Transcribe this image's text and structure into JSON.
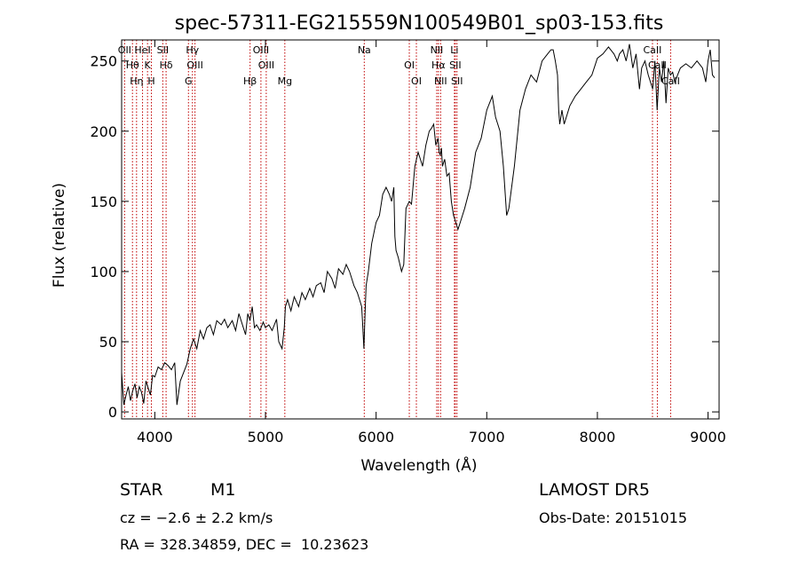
{
  "chart_data": {
    "type": "line",
    "title": "spec-57311-EG215559N100549B01_sp03-153.fits",
    "xlabel": "Wavelength (Å)",
    "ylabel": "Flux (relative)",
    "xlim": [
      3700,
      9100
    ],
    "ylim": [
      -5,
      265
    ],
    "xticks": [
      4000,
      5000,
      6000,
      7000,
      8000,
      9000
    ],
    "yticks": [
      0,
      50,
      100,
      150,
      200,
      250
    ],
    "grid": false,
    "line_color": "#000000",
    "marker_color": "#c00000",
    "series": [
      {
        "x": [
          3700,
          3720,
          3740,
          3760,
          3780,
          3800,
          3820,
          3840,
          3860,
          3880,
          3900,
          3920,
          3940,
          3960,
          3980,
          4000,
          4030,
          4060,
          4090,
          4120,
          4150,
          4180,
          4200,
          4230,
          4260,
          4290,
          4320,
          4350,
          4380,
          4410,
          4440,
          4470,
          4500,
          4530,
          4560,
          4600,
          4630,
          4660,
          4700,
          4730,
          4760,
          4800,
          4820,
          4840,
          4860,
          4880,
          4900,
          4920,
          4950,
          4980,
          5000,
          5030,
          5060,
          5100,
          5120,
          5150,
          5170,
          5180,
          5200,
          5230,
          5260,
          5300,
          5330,
          5360,
          5400,
          5430,
          5460,
          5500,
          5530,
          5560,
          5600,
          5630,
          5660,
          5700,
          5730,
          5760,
          5800,
          5830,
          5850,
          5870,
          5880,
          5890,
          5900,
          5910,
          5930,
          5960,
          6000,
          6030,
          6060,
          6090,
          6120,
          6140,
          6160,
          6170,
          6180,
          6200,
          6230,
          6250,
          6270,
          6300,
          6320,
          6350,
          6380,
          6400,
          6420,
          6450,
          6480,
          6500,
          6520,
          6540,
          6560,
          6570,
          6580,
          6590,
          6600,
          6620,
          6640,
          6660,
          6680,
          6700,
          6720,
          6740,
          6760,
          6800,
          6850,
          6900,
          6950,
          7000,
          7050,
          7080,
          7100,
          7120,
          7150,
          7180,
          7200,
          7250,
          7300,
          7350,
          7400,
          7450,
          7500,
          7550,
          7580,
          7600,
          7620,
          7640,
          7650,
          7660,
          7680,
          7700,
          7750,
          7800,
          7850,
          7900,
          7950,
          8000,
          8050,
          8100,
          8150,
          8180,
          8200,
          8230,
          8260,
          8290,
          8320,
          8350,
          8380,
          8400,
          8430,
          8460,
          8500,
          8520,
          8540,
          8560,
          8580,
          8600,
          8620,
          8640,
          8660,
          8680,
          8700,
          8750,
          8800,
          8850,
          8900,
          8950,
          8980,
          9000,
          9020,
          9040,
          9060
        ],
        "y": [
          28,
          5,
          12,
          18,
          8,
          15,
          20,
          10,
          18,
          14,
          6,
          22,
          17,
          12,
          26,
          25,
          32,
          30,
          35,
          33,
          30,
          35,
          5,
          22,
          28,
          34,
          45,
          52,
          45,
          58,
          52,
          60,
          62,
          55,
          65,
          62,
          66,
          60,
          65,
          58,
          70,
          60,
          55,
          70,
          65,
          75,
          60,
          62,
          58,
          64,
          60,
          62,
          58,
          66,
          50,
          45,
          60,
          75,
          80,
          72,
          82,
          75,
          85,
          80,
          88,
          82,
          90,
          92,
          85,
          100,
          95,
          88,
          102,
          98,
          105,
          100,
          90,
          85,
          80,
          75,
          60,
          45,
          70,
          90,
          100,
          120,
          135,
          140,
          155,
          160,
          155,
          150,
          160,
          125,
          115,
          110,
          100,
          105,
          145,
          150,
          148,
          175,
          185,
          180,
          175,
          190,
          200,
          202,
          205,
          190,
          195,
          185,
          183,
          188,
          175,
          180,
          168,
          170,
          150,
          140,
          135,
          130,
          135,
          145,
          160,
          185,
          195,
          215,
          225,
          210,
          205,
          200,
          175,
          140,
          145,
          175,
          215,
          230,
          240,
          235,
          250,
          255,
          258,
          258,
          250,
          240,
          215,
          205,
          215,
          205,
          218,
          225,
          230,
          235,
          240,
          252,
          255,
          260,
          255,
          250,
          255,
          258,
          250,
          262,
          245,
          255,
          230,
          245,
          250,
          240,
          230,
          250,
          215,
          245,
          235,
          250,
          220,
          245,
          240,
          242,
          235,
          245,
          248,
          245,
          250,
          245,
          235,
          250,
          258,
          240,
          238
        ]
      }
    ],
    "lines": [
      {
        "x": 3727,
        "label": "OII"
      },
      {
        "x": 3798,
        "label": "Hθ"
      },
      {
        "x": 3835,
        "label": "Hη"
      },
      {
        "x": 3889,
        "label": "HeI"
      },
      {
        "x": 3934,
        "label": "K"
      },
      {
        "x": 3969,
        "label": "H"
      },
      {
        "x": 4072,
        "label": "SII"
      },
      {
        "x": 4102,
        "label": "Hδ"
      },
      {
        "x": 4304,
        "label": "G"
      },
      {
        "x": 4340,
        "label": "Hγ"
      },
      {
        "x": 4363,
        "label": "OIII"
      },
      {
        "x": 4861,
        "label": "Hβ"
      },
      {
        "x": 4959,
        "label": "OIII"
      },
      {
        "x": 5007,
        "label": "OIII"
      },
      {
        "x": 5175,
        "label": "Mg"
      },
      {
        "x": 5893,
        "label": "Na"
      },
      {
        "x": 6300,
        "label": "OI"
      },
      {
        "x": 6364,
        "label": "OI"
      },
      {
        "x": 6548,
        "label": "NII"
      },
      {
        "x": 6563,
        "label": "Hα"
      },
      {
        "x": 6583,
        "label": "NII"
      },
      {
        "x": 6708,
        "label": "Li"
      },
      {
        "x": 6716,
        "label": "SII"
      },
      {
        "x": 6731,
        "label": "SII"
      },
      {
        "x": 8498,
        "label": "CaII"
      },
      {
        "x": 8542,
        "label": "CaII"
      },
      {
        "x": 8662,
        "label": "CaII"
      }
    ]
  },
  "info": {
    "object_type": "STAR",
    "subclass": "M1",
    "survey": "LAMOST DR5",
    "cz": "cz = −2.6 ± 2.2 km/s",
    "obs_date": "Obs-Date: 20151015",
    "coords": "RA = 328.34859, DEC =  10.23623"
  }
}
